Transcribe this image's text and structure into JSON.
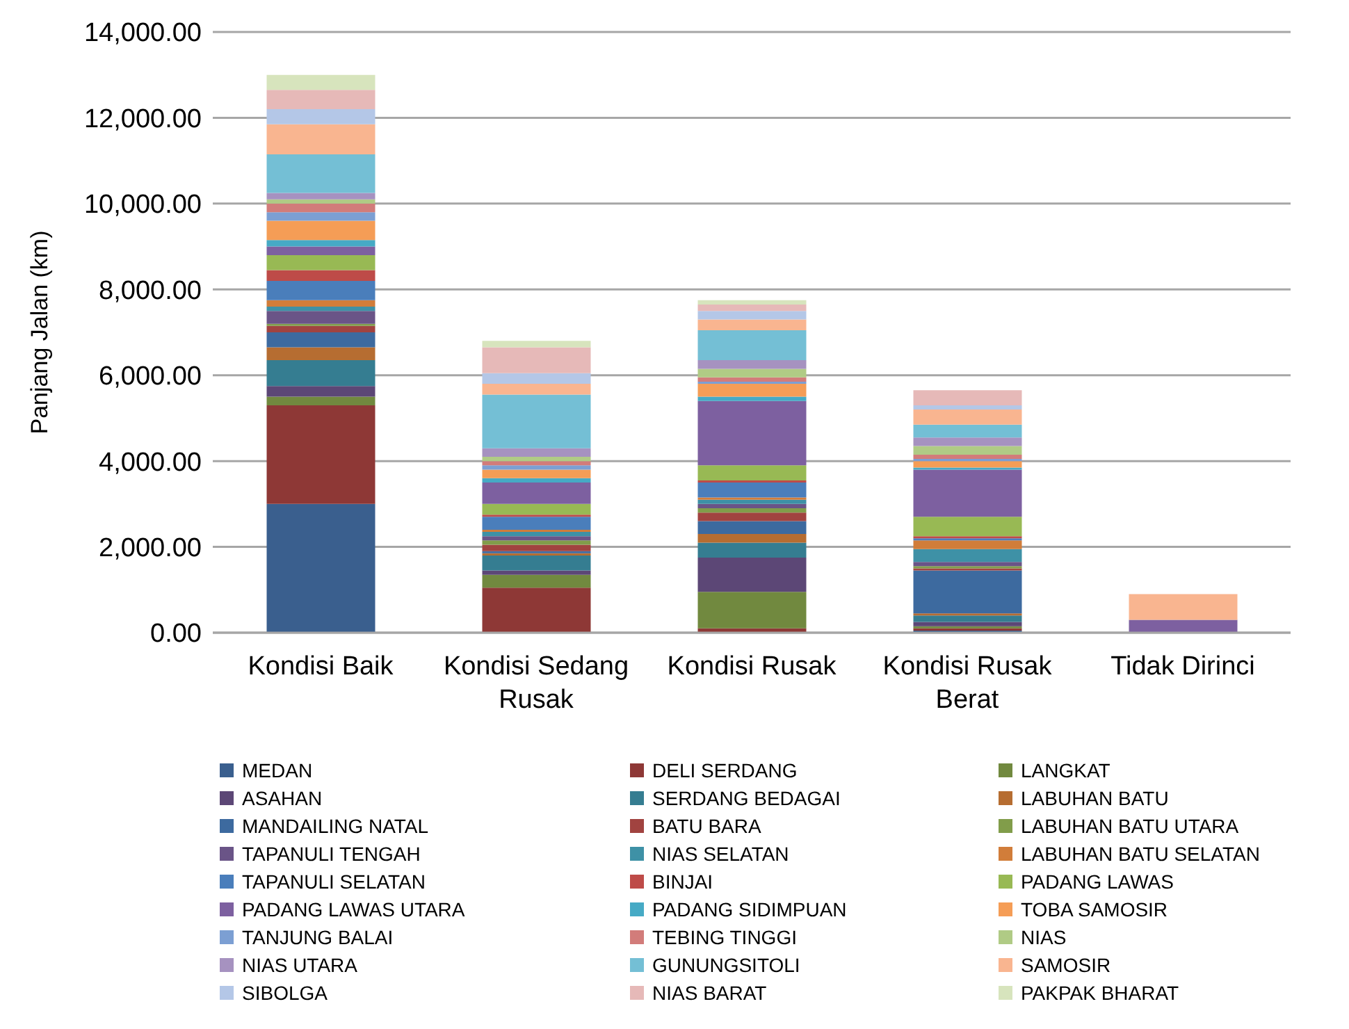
{
  "chart_data": {
    "type": "bar",
    "stacked": true,
    "ylabel": "Panjang Jalan (km)",
    "categories": [
      "Kondisi Baik",
      "Kondisi Sedang Rusak",
      "Kondisi Rusak",
      "Kondisi Rusak Berat",
      "Tidak Dirinci"
    ],
    "ylim": [
      0,
      14000
    ],
    "yticks": [
      {
        "value": 0,
        "label": "0.00"
      },
      {
        "value": 2000,
        "label": "2,000.00"
      },
      {
        "value": 4000,
        "label": "4,000.00"
      },
      {
        "value": 6000,
        "label": "6,000.00"
      },
      {
        "value": 8000,
        "label": "8,000.00"
      },
      {
        "value": 10000,
        "label": "10,000.00"
      },
      {
        "value": 12000,
        "label": "12,000.00"
      },
      {
        "value": 14000,
        "label": "14,000.00"
      }
    ],
    "grid": "y",
    "legend": "bottom",
    "series": [
      {
        "name": "MEDAN",
        "color": "#3a5f8e",
        "values": [
          3000,
          0,
          0,
          50,
          0
        ]
      },
      {
        "name": "DELI SERDANG",
        "color": "#8e3836",
        "values": [
          2300,
          1050,
          100,
          50,
          0
        ]
      },
      {
        "name": "LANGKAT",
        "color": "#71893f",
        "values": [
          200,
          300,
          850,
          50,
          0
        ]
      },
      {
        "name": "ASAHAN",
        "color": "#5c4776",
        "values": [
          250,
          100,
          800,
          100,
          0
        ]
      },
      {
        "name": "SERDANG BEDAGAI",
        "color": "#357d91",
        "values": [
          600,
          350,
          350,
          150,
          0
        ]
      },
      {
        "name": "LABUHAN BATU",
        "color": "#b66d31",
        "values": [
          300,
          50,
          200,
          50,
          0
        ]
      },
      {
        "name": "MANDAILING NATAL",
        "color": "#3d6a9f",
        "values": [
          350,
          50,
          300,
          1000,
          0
        ]
      },
      {
        "name": "BATU BARA",
        "color": "#a14340",
        "values": [
          150,
          150,
          200,
          50,
          0
        ]
      },
      {
        "name": "LABUHAN BATU UTARA",
        "color": "#819d4a",
        "values": [
          50,
          100,
          100,
          50,
          0
        ]
      },
      {
        "name": "TAPANULI TENGAH",
        "color": "#6a5487",
        "values": [
          300,
          100,
          100,
          100,
          0
        ]
      },
      {
        "name": "NIAS SELATAN",
        "color": "#3e91a6",
        "values": [
          100,
          100,
          100,
          300,
          0
        ]
      },
      {
        "name": "LABUHAN BATU SELATAN",
        "color": "#d17d3a",
        "values": [
          150,
          50,
          50,
          200,
          0
        ]
      },
      {
        "name": "TAPANULI SELATAN",
        "color": "#4a7ebb",
        "values": [
          450,
          300,
          350,
          50,
          0
        ]
      },
      {
        "name": "BINJAI",
        "color": "#be4b48",
        "values": [
          250,
          50,
          50,
          50,
          0
        ]
      },
      {
        "name": "PADANG LAWAS",
        "color": "#98b954",
        "values": [
          350,
          250,
          350,
          450,
          0
        ]
      },
      {
        "name": "PADANG LAWAS UTARA",
        "color": "#7d60a0",
        "values": [
          200,
          500,
          1500,
          1100,
          300
        ]
      },
      {
        "name": "PADANG SIDIMPUAN",
        "color": "#46aac5",
        "values": [
          150,
          100,
          100,
          50,
          0
        ]
      },
      {
        "name": "TOBA SAMOSIR",
        "color": "#f59d56",
        "values": [
          450,
          200,
          300,
          150,
          0
        ]
      },
      {
        "name": "TANJUNG BALAI",
        "color": "#7c9fd3",
        "values": [
          200,
          100,
          50,
          50,
          0
        ]
      },
      {
        "name": "TEBING TINGGI",
        "color": "#d27c7a",
        "values": [
          200,
          100,
          100,
          100,
          0
        ]
      },
      {
        "name": "NIAS",
        "color": "#b0cb85",
        "values": [
          100,
          100,
          200,
          200,
          0
        ]
      },
      {
        "name": "NIAS UTARA",
        "color": "#a692c0",
        "values": [
          150,
          200,
          200,
          200,
          0
        ]
      },
      {
        "name": "GUNUNGSITOLI",
        "color": "#74bfd5",
        "values": [
          900,
          1250,
          700,
          300,
          0
        ]
      },
      {
        "name": "SAMOSIR",
        "color": "#f9b590",
        "values": [
          700,
          250,
          250,
          350,
          600
        ]
      },
      {
        "name": "SIBOLGA",
        "color": "#b4c7e7",
        "values": [
          350,
          250,
          200,
          100,
          0
        ]
      },
      {
        "name": "NIAS BARAT",
        "color": "#e6b9b8",
        "values": [
          450,
          600,
          150,
          350,
          0
        ]
      },
      {
        "name": "PAKPAK BHARAT",
        "color": "#d7e4bd",
        "values": [
          350,
          150,
          100,
          0,
          0
        ]
      }
    ]
  }
}
